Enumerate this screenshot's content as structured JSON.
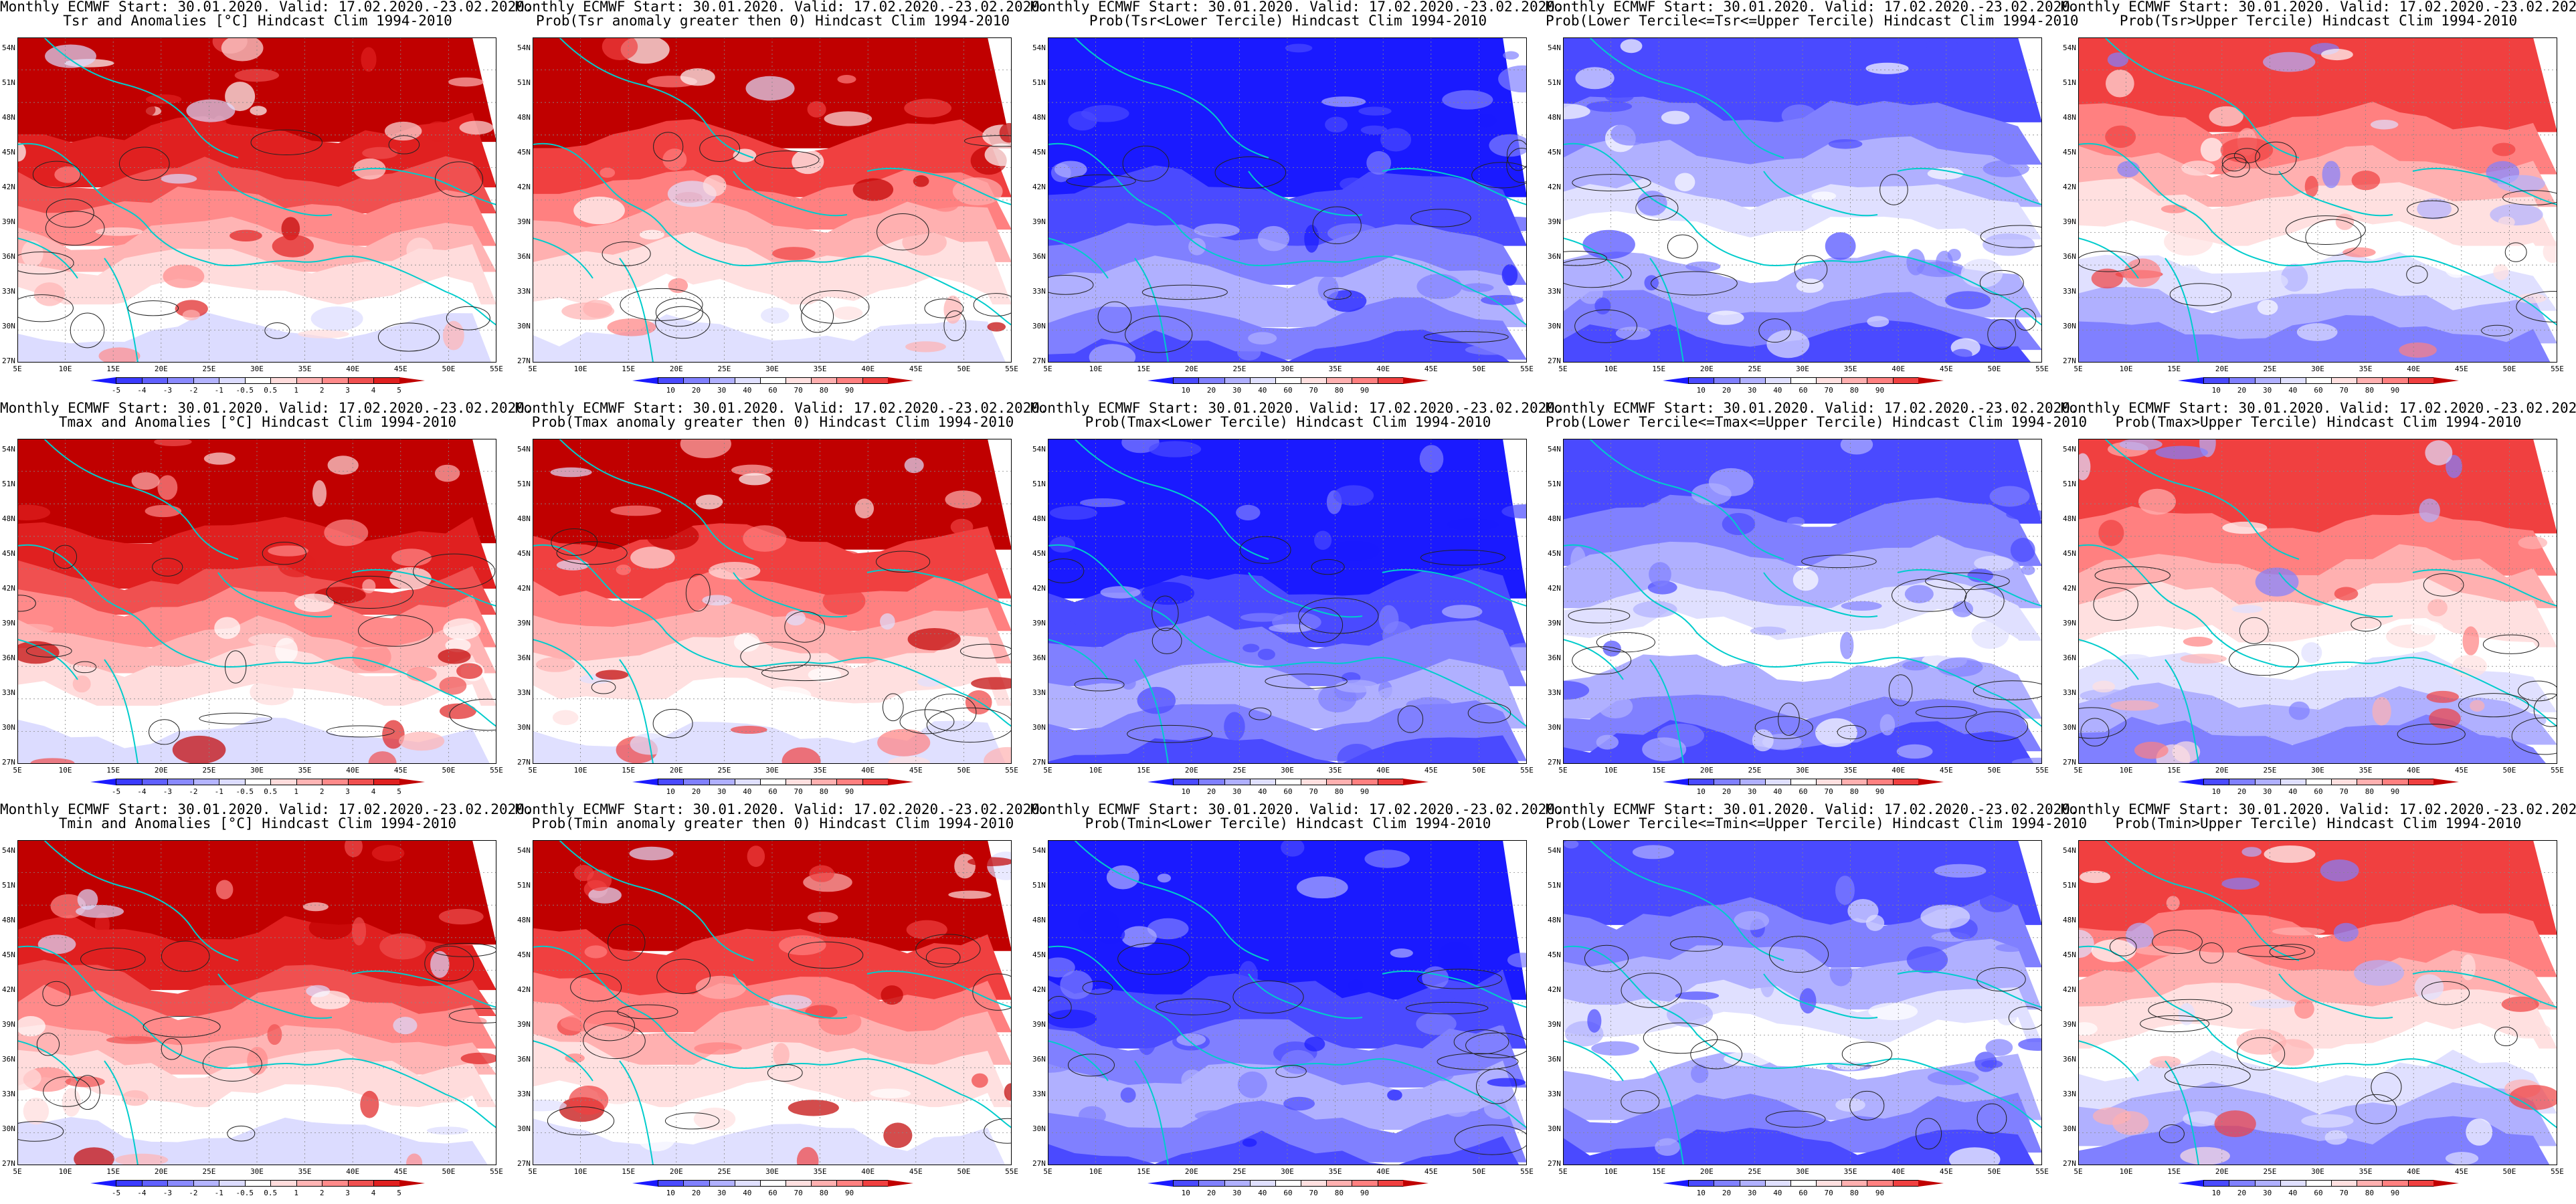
{
  "header_common": "Monthly ECMWF Start: 30.01.2020. Valid: 17.02.2020.-23.02.2020.",
  "lat_labels": [
    "54N",
    "51N",
    "48N",
    "45N",
    "42N",
    "39N",
    "36N",
    "33N",
    "30N",
    "27N"
  ],
  "lon_labels": [
    "5E",
    "10E",
    "15E",
    "20E",
    "25E",
    "30E",
    "35E",
    "40E",
    "45E",
    "50E",
    "55E"
  ],
  "colors": {
    "anom": [
      "#1a1aff",
      "#3b3bff",
      "#6060ff",
      "#8a8aff",
      "#b4b4ff",
      "#dcdcff",
      "#ffffff",
      "#ffdcdc",
      "#ffb4b4",
      "#ff8a8a",
      "#f05050",
      "#e02020",
      "#c00000"
    ],
    "prob": [
      "#1a1aff",
      "#4a4aff",
      "#8080ff",
      "#b0b0ff",
      "#e0e0ff",
      "#ffffff",
      "#ffe0e0",
      "#ffb0b0",
      "#ff8080",
      "#f04040",
      "#c00000"
    ],
    "coast": "#00cccc",
    "contour": "#222222"
  },
  "colorbars": {
    "anom_ticks": [
      "-5",
      "-4",
      "-3",
      "-2",
      "-1",
      "-0.5",
      "0.5",
      "1",
      "2",
      "3",
      "4",
      "5"
    ],
    "prob_ticks": [
      "10",
      "20",
      "30",
      "40",
      "60",
      "70",
      "80",
      "90"
    ]
  },
  "panels": [
    {
      "id": "tsr-anom",
      "row": 0,
      "col": 0,
      "line2": "Tsr and Anomalies [°C] Hindcast Clim 1994-2010",
      "scale": "anom",
      "theme": "warm"
    },
    {
      "id": "tsr-prob-pos",
      "row": 0,
      "col": 1,
      "line2": "Prob(Tsr anomaly greater then 0) Hindcast Clim 1994-2010",
      "scale": "prob",
      "theme": "hot"
    },
    {
      "id": "tsr-prob-lower",
      "row": 0,
      "col": 2,
      "line2": "Prob(Tsr<Lower Tercile) Hindcast Clim 1994-2010",
      "scale": "prob",
      "theme": "blue"
    },
    {
      "id": "tsr-prob-mid",
      "row": 0,
      "col": 3,
      "line2": "Prob(Lower Tercile<=Tsr<=Upper Tercile) Hindcast Clim 1994-2010",
      "scale": "prob",
      "theme": "mid"
    },
    {
      "id": "tsr-prob-upper",
      "row": 0,
      "col": 4,
      "line2": "Prob(Tsr>Upper Tercile) Hindcast Clim 1994-2010",
      "scale": "prob",
      "theme": "upper"
    },
    {
      "id": "tmax-anom",
      "row": 1,
      "col": 0,
      "line2": "Tmax and Anomalies [°C] Hindcast Clim 1994-2010",
      "scale": "anom",
      "theme": "warm"
    },
    {
      "id": "tmax-prob-pos",
      "row": 1,
      "col": 1,
      "line2": "Prob(Tmax anomaly greater then 0) Hindcast Clim 1994-2010",
      "scale": "prob",
      "theme": "hot"
    },
    {
      "id": "tmax-prob-lower",
      "row": 1,
      "col": 2,
      "line2": "Prob(Tmax<Lower Tercile) Hindcast Clim 1994-2010",
      "scale": "prob",
      "theme": "blue"
    },
    {
      "id": "tmax-prob-mid",
      "row": 1,
      "col": 3,
      "line2": "Prob(Lower Tercile<=Tmax<=Upper Tercile) Hindcast Clim 1994-2010",
      "scale": "prob",
      "theme": "mid"
    },
    {
      "id": "tmax-prob-upper",
      "row": 1,
      "col": 4,
      "line2": "Prob(Tmax>Upper Tercile) Hindcast Clim 1994-2010",
      "scale": "prob",
      "theme": "upper"
    },
    {
      "id": "tmin-anom",
      "row": 2,
      "col": 0,
      "line2": "Tmin and Anomalies [°C] Hindcast Clim 1994-2010",
      "scale": "anom",
      "theme": "warm"
    },
    {
      "id": "tmin-prob-pos",
      "row": 2,
      "col": 1,
      "line2": "Prob(Tmin anomaly greater then 0) Hindcast Clim 1994-2010",
      "scale": "prob",
      "theme": "hot"
    },
    {
      "id": "tmin-prob-lower",
      "row": 2,
      "col": 2,
      "line2": "Prob(Tmin<Lower Tercile) Hindcast Clim 1994-2010",
      "scale": "prob",
      "theme": "blue"
    },
    {
      "id": "tmin-prob-mid",
      "row": 2,
      "col": 3,
      "line2": "Prob(Lower Tercile<=Tmin<=Upper Tercile) Hindcast Clim 1994-2010",
      "scale": "prob",
      "theme": "mid"
    },
    {
      "id": "tmin-prob-upper",
      "row": 2,
      "col": 4,
      "line2": "Prob(Tmin>Upper Tercile) Hindcast Clim 1994-2010",
      "scale": "prob",
      "theme": "upper"
    }
  ]
}
